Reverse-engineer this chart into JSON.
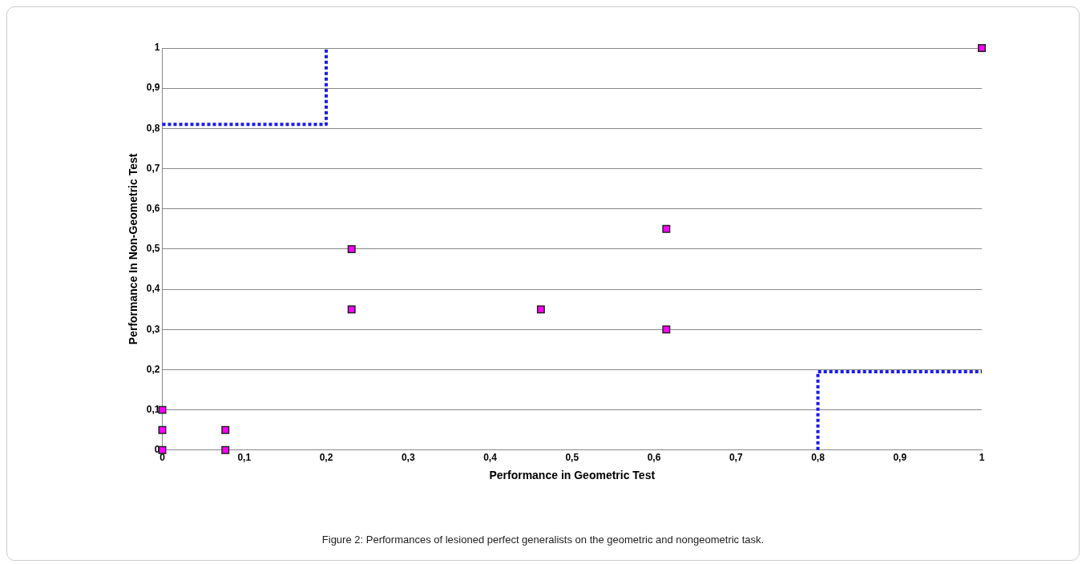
{
  "chart_data": {
    "type": "scatter",
    "xlabel": "Performance in Geometric Test",
    "ylabel": "Performance In Non-Geometric Test",
    "annotations": [
      "Figure 2: Performances of lesioned perfect generalists on the geometric and nongeometric task."
    ],
    "xlim": [
      0,
      1
    ],
    "ylim": [
      0,
      1
    ],
    "xticks": [
      0,
      {
        "value": 0.1,
        "label": "0,1"
      },
      {
        "value": 0.2,
        "label": "0,2"
      },
      {
        "value": 0.3,
        "label": "0,3"
      },
      {
        "value": 0.4,
        "label": "0,4"
      },
      {
        "value": 0.5,
        "label": "0,5"
      },
      {
        "value": 0.6,
        "label": "0,6"
      },
      {
        "value": 0.7,
        "label": "0,7"
      },
      {
        "value": 0.8,
        "label": "0,8"
      },
      {
        "value": 0.9,
        "label": "0,9"
      },
      1
    ],
    "yticks": [
      0,
      {
        "value": 0.1,
        "label": "0,1"
      },
      {
        "value": 0.2,
        "label": "0,2"
      },
      {
        "value": 0.3,
        "label": "0,3"
      },
      {
        "value": 0.4,
        "label": "0,4"
      },
      {
        "value": 0.5,
        "label": "0,5"
      },
      {
        "value": 0.6,
        "label": "0,6"
      },
      {
        "value": 0.7,
        "label": "0,7"
      },
      {
        "value": 0.8,
        "label": "0,8"
      },
      {
        "value": 0.9,
        "label": "0,9"
      },
      1
    ],
    "grid": "y",
    "legend": false,
    "marker": "square",
    "series": [
      {
        "color": "#ff00ff",
        "x": [
          0,
          0,
          0,
          0.077,
          0.077,
          0.231,
          0.231,
          0.462,
          0.615,
          0.615,
          1
        ],
        "values": [
          0,
          0.05,
          0.1,
          0.05,
          0,
          0.5,
          0.35,
          0.35,
          0.55,
          0.3,
          1
        ]
      },
      {
        "type": "line",
        "color": "#1a1aee",
        "line_style": "dotted",
        "marker": "none",
        "x": [
          0,
          0.2,
          0.2
        ],
        "values": [
          0.81,
          0.81,
          1
        ]
      },
      {
        "type": "line",
        "color": "#1a1aee",
        "line_style": "dotted",
        "marker": "none",
        "x": [
          0.8,
          0.8,
          1
        ],
        "values": [
          0,
          0.195,
          0.195
        ]
      }
    ]
  }
}
